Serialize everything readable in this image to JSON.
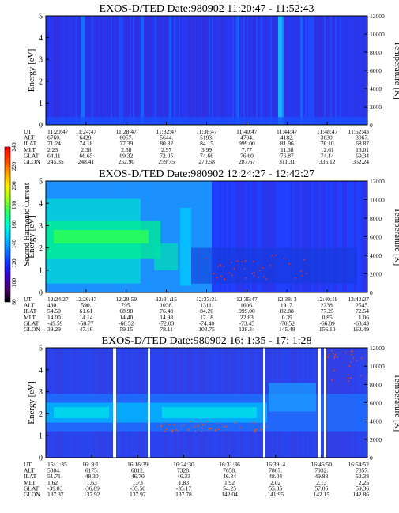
{
  "colorbar": {
    "label": "Second Harmonic Current",
    "ticks": [
      "240",
      "220",
      "200",
      "180",
      "160",
      "140",
      "120",
      "100",
      "80"
    ],
    "colors": [
      "#000000",
      "#4b0066",
      "#3a00c8",
      "#1030ff",
      "#0a78ff",
      "#00c8ff",
      "#00ffd0",
      "#30ff60",
      "#a0ff20",
      "#fff000",
      "#ffa000",
      "#ff4000",
      "#ff0000"
    ]
  },
  "chart_data": [
    {
      "type": "heatmap",
      "title": "EXOS-D/TED   Date:980902   11:20:47 - 11:52:43",
      "ylabel": "Energy [eV]",
      "y2label": "Temperature [K]",
      "yticks": [
        "0",
        "1",
        "2",
        "3",
        "4",
        "5"
      ],
      "ylim": [
        0,
        5
      ],
      "y2ticks": [
        "0",
        "2000",
        "4000",
        "6000",
        "8000",
        "10000",
        "12000"
      ],
      "y2lim": [
        0,
        12000
      ],
      "table": {
        "labels": [
          "UT",
          "ALT",
          "ILAT",
          "MLT",
          "GLAT",
          "GLON"
        ],
        "columns": [
          [
            "11:20:47",
            "6760.",
            "71.24",
            "2.23",
            "64.11",
            "245.35"
          ],
          [
            "11:24:47",
            "6429.",
            "74.18",
            "2.38",
            "66.65",
            "248.41"
          ],
          [
            "11:28:47",
            "6057.",
            "77.39",
            "2.58",
            "69.32",
            "252.90"
          ],
          [
            "11:32:47",
            "5644.",
            "80.82",
            "2.97",
            "72.05",
            "259.75"
          ],
          [
            "11:36:47",
            "5193.",
            "84.15",
            "3.99",
            "74.66",
            "270.58"
          ],
          [
            "11:40:47",
            "4704.",
            "999.00",
            "7.77",
            "76.60",
            "287.67"
          ],
          [
            "11:44:47",
            "4182.",
            "81.96",
            "11.38",
            "76.87",
            "311.31"
          ],
          [
            "11:48:47",
            "3630.",
            "76.10",
            "12.61",
            "74.44",
            "335.12"
          ],
          [
            "11:52:43",
            "3067.",
            "68.87",
            "13.01",
            "69.34",
            "352.24"
          ]
        ]
      }
    },
    {
      "type": "heatmap",
      "title": "EXOS-D/TED   Date:980902   12:24:27 - 12:42:27",
      "ylabel": "Energy [eV]",
      "y2label": "Temperature [K]",
      "yticks": [
        "0",
        "1",
        "2",
        "3",
        "4",
        "5"
      ],
      "ylim": [
        0,
        5
      ],
      "y2ticks": [
        "0",
        "2000",
        "4000",
        "6000",
        "8000",
        "10000",
        "12000"
      ],
      "y2lim": [
        0,
        12000
      ],
      "table": {
        "labels": [
          "UT",
          "ALT",
          "ILAT",
          "MLT",
          "GLAT",
          "GLON"
        ],
        "columns": [
          [
            "12:24:27",
            "430.",
            "54.50",
            "14.00",
            "-49.59",
            "39.29"
          ],
          [
            "12:26:43",
            "590.",
            "61.61",
            "14.14",
            "-58.77",
            "47.16"
          ],
          [
            "12:28:59",
            "795.",
            "68.98",
            "14.40",
            "-66.52",
            "59.15"
          ],
          [
            "12:31:15",
            "1038.",
            "76.48",
            "14.98",
            "-72.03",
            "78.11"
          ],
          [
            "12:33:31",
            "1311.",
            "84.26",
            "17.18",
            "-74.40",
            "103.75"
          ],
          [
            "12:35:47",
            "1606.",
            "999.00",
            "22.83",
            "-73.45",
            "128.34"
          ],
          [
            "12:38: 3",
            "1917.",
            "82.88",
            "0.39",
            "-70.52",
            "145.48"
          ],
          [
            "12:40:19",
            "2238.",
            "77.25",
            "0.85",
            "-66.89",
            "156.10"
          ],
          [
            "12:42:27",
            "2545.",
            "72.54",
            "1.06",
            "-63.43",
            "162.49"
          ]
        ]
      }
    },
    {
      "type": "heatmap",
      "title": "EXOS-D/TED   Date:980902   16: 1:35 - 17: 1:28",
      "ylabel": "Energy [eV]",
      "y2label": "Temperature [K]",
      "yticks": [
        "0",
        "1",
        "2",
        "3",
        "4",
        "5"
      ],
      "ylim": [
        0,
        5
      ],
      "y2ticks": [
        "0",
        "2000",
        "4000",
        "6000",
        "8000",
        "10000",
        "12000"
      ],
      "y2lim": [
        0,
        12000
      ],
      "table": {
        "labels": [
          "UT",
          "ALT",
          "ILAT",
          "MLT",
          "GLAT",
          "GLON"
        ],
        "columns": [
          [
            "16: 1:35",
            "5384.",
            "51.71",
            "1.62",
            "-39.83",
            "137.37"
          ],
          [
            "16: 9:11",
            "6175.",
            "48.30",
            "1.63",
            "-36.89",
            "137.92"
          ],
          [
            "16:16:39",
            "6812.",
            "46.70",
            "1.73",
            "-35.50",
            "137.97"
          ],
          [
            "16:24:30",
            "7328.",
            "46.33",
            "1.83",
            "-35.17",
            "137.78"
          ],
          [
            "16:31:36",
            "7658.",
            "46.84",
            "1.92",
            "54.25",
            "142.04"
          ],
          [
            "16:39: 4",
            "7867.",
            "48.04",
            "2.02",
            "55.35",
            "141.95"
          ],
          [
            "16:46:50",
            "7932.",
            "49.88",
            "2.13",
            "57.05",
            "142.15"
          ],
          [
            "16:54:52",
            "7857.",
            "52.38",
            "2.25",
            "59.36",
            "142.86"
          ]
        ]
      }
    }
  ]
}
